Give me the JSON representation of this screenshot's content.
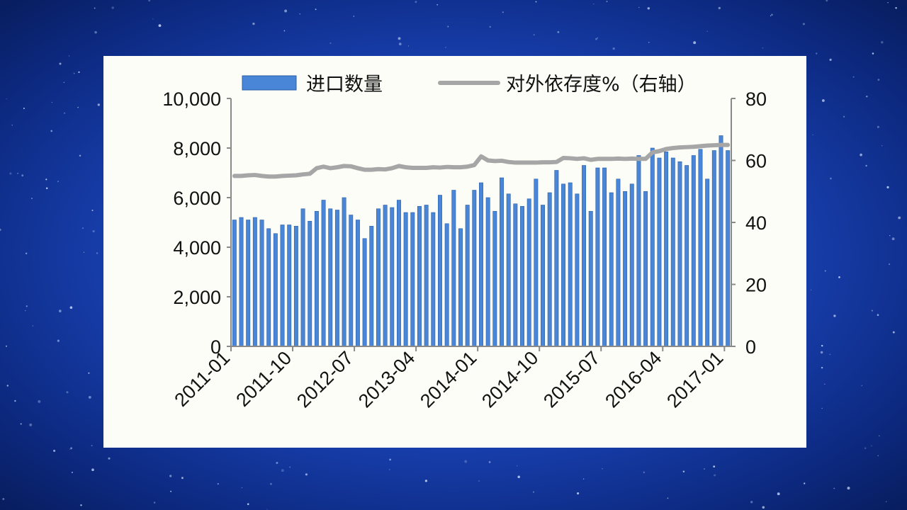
{
  "chart_data": {
    "type": "bar+line",
    "legend": [
      "进口数量",
      "对外依存度%（右轴）"
    ],
    "legend_position": "top",
    "x_tick_labels": [
      "2011-01",
      "2011-10",
      "2012-07",
      "2013-04",
      "2014-01",
      "2014-10",
      "2015-07",
      "2016-04",
      "2017-01"
    ],
    "y_left": {
      "ticks": [
        "0",
        "2,000",
        "4,000",
        "6,000",
        "8,000",
        "10,000"
      ],
      "range": [
        0,
        10000
      ]
    },
    "y_right": {
      "ticks": [
        "0",
        "20",
        "40",
        "60",
        "80"
      ],
      "range": [
        0,
        80
      ]
    },
    "grid": false,
    "colors": {
      "bars": "#4a86d8",
      "bar_edge": "#2a5fa8",
      "line": "#a6a6a6"
    },
    "series": [
      {
        "name": "进口数量",
        "type": "bar",
        "axis": "left",
        "start": "2011-01",
        "frequency": "monthly",
        "values": [
          5100,
          5200,
          5100,
          5200,
          5100,
          4750,
          4550,
          4900,
          4900,
          4850,
          5550,
          5050,
          5450,
          5900,
          5550,
          5500,
          6000,
          5300,
          5100,
          4350,
          4850,
          5550,
          5700,
          5600,
          5900,
          5400,
          5400,
          5650,
          5700,
          5400,
          6100,
          4950,
          6300,
          4750,
          5700,
          6300,
          6600,
          6000,
          5450,
          6800,
          6150,
          5750,
          5650,
          5950,
          6750,
          5700,
          6200,
          7100,
          6550,
          6600,
          6150,
          7300,
          5450,
          7200,
          7200,
          6200,
          6750,
          6250,
          6550,
          7700,
          6250,
          8000,
          7600,
          7850,
          7600,
          7450,
          7300,
          7700,
          7950,
          6750,
          7900,
          8500,
          7900
        ]
      },
      {
        "name": "对外依存度%（右轴）",
        "type": "line",
        "axis": "right",
        "start": "2011-01",
        "frequency": "monthly",
        "values": [
          55,
          55,
          55.2,
          55.3,
          55,
          54.8,
          54.8,
          55,
          55.1,
          55.2,
          55.5,
          55.7,
          57.5,
          58,
          57.5,
          57.8,
          58.2,
          58.1,
          57.5,
          57,
          57,
          57.2,
          57.1,
          57.5,
          58.2,
          57.8,
          57.6,
          57.6,
          57.6,
          57.8,
          57.7,
          57.9,
          57.8,
          57.8,
          58,
          58.5,
          61.3,
          60,
          59.8,
          59.9,
          59.5,
          59.3,
          59.3,
          59.3,
          59.3,
          59.4,
          59.4,
          59.5,
          60.8,
          60.7,
          60.5,
          60.7,
          60.2,
          60.5,
          60.5,
          60.5,
          60.6,
          60.5,
          60.6,
          60.5,
          60.5,
          62.6,
          63,
          63.7,
          64,
          64.2,
          64.3,
          64.4,
          64.6,
          64.8,
          64.9,
          65,
          65
        ]
      }
    ]
  }
}
